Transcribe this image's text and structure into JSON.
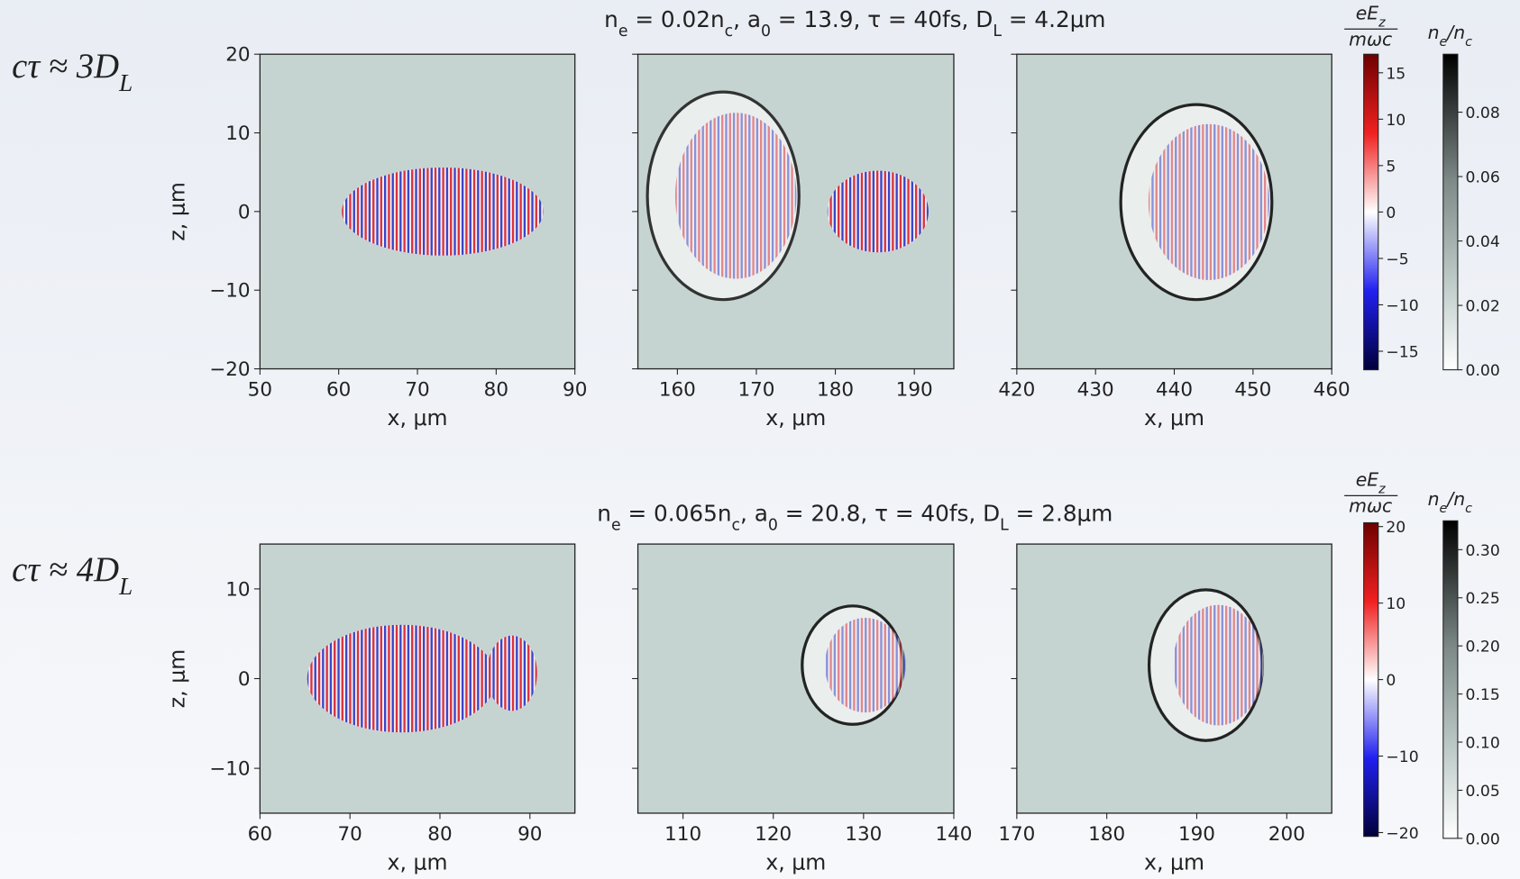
{
  "rows": [
    {
      "label": [
        "cτ ≈ 3D",
        "L"
      ],
      "title": [
        "n",
        "e",
        " = 0.02n",
        "c",
        ", a",
        "0",
        " = 13.9, τ = 40fs, D",
        "L",
        " = 4.2μm"
      ],
      "ylabel": "z, μm",
      "ylim": [
        -20,
        20
      ],
      "yticks": [
        {
          "value": -20,
          "label": "−20"
        },
        {
          "value": -10,
          "label": "−10"
        },
        0,
        10,
        20
      ],
      "panels": [
        {
          "xlabel": "x, μm",
          "xlim": [
            50,
            90
          ],
          "xticks": [
            50,
            60,
            70,
            80,
            90
          ]
        },
        {
          "xlabel": "x, μm",
          "xlim": [
            155,
            195
          ],
          "xticks": [
            160,
            170,
            180,
            190
          ]
        },
        {
          "xlabel": "x, μm",
          "xlim": [
            420,
            460
          ],
          "xticks": [
            420,
            430,
            440,
            450,
            460
          ]
        }
      ],
      "field_bar": {
        "label_top": [
          "eE",
          "z"
        ],
        "label_bottom": "mωc",
        "lim": [
          -17,
          17
        ],
        "ticks": [
          {
            "value": -15,
            "label": "−15"
          },
          {
            "value": -10,
            "label": "−10"
          },
          {
            "value": -5,
            "label": "−5"
          },
          0,
          5,
          10,
          15
        ]
      },
      "density_bar": {
        "label": [
          "n",
          "e",
          "/n",
          "c"
        ],
        "lim": [
          0,
          0.098
        ],
        "ticks": [
          {
            "value": 0,
            "label": "0.00"
          },
          0.02,
          0.04,
          0.06,
          0.08
        ]
      }
    },
    {
      "label": [
        "cτ ≈ 4D",
        "L"
      ],
      "title": [
        "n",
        "e",
        " = 0.065n",
        "c",
        ", a",
        "0",
        " = 20.8, τ = 40fs, D",
        "L",
        " = 2.8μm"
      ],
      "ylabel": "z, μm",
      "ylim": [
        -15,
        15
      ],
      "yticks": [
        {
          "value": -10,
          "label": "−10"
        },
        0,
        10
      ],
      "panels": [
        {
          "xlabel": "x, μm",
          "xlim": [
            60,
            95
          ],
          "xticks": [
            60,
            70,
            80,
            90
          ]
        },
        {
          "xlabel": "x, μm",
          "xlim": [
            105,
            140
          ],
          "xticks": [
            110,
            120,
            130,
            140
          ]
        },
        {
          "xlabel": "x, μm",
          "xlim": [
            170,
            205
          ],
          "xticks": [
            170,
            180,
            190,
            200
          ]
        }
      ],
      "field_bar": {
        "label_top": [
          "eE",
          "z"
        ],
        "label_bottom": "mωc",
        "lim": [
          -20.5,
          20.5
        ],
        "ticks": [
          {
            "value": -20,
            "label": "−20"
          },
          {
            "value": -10,
            "label": "−10"
          },
          0,
          10,
          20
        ]
      },
      "density_bar": {
        "label": [
          "n",
          "e",
          "/n",
          "c"
        ],
        "lim": [
          0,
          0.33
        ],
        "ticks": [
          {
            "value": 0,
            "label": "0.00"
          },
          0.05,
          {
            "value": 0.1,
            "label": "0.10"
          },
          0.15,
          {
            "value": 0.2,
            "label": "0.20"
          },
          0.25,
          {
            "value": 0.3,
            "label": "0.30"
          }
        ]
      }
    }
  ]
}
